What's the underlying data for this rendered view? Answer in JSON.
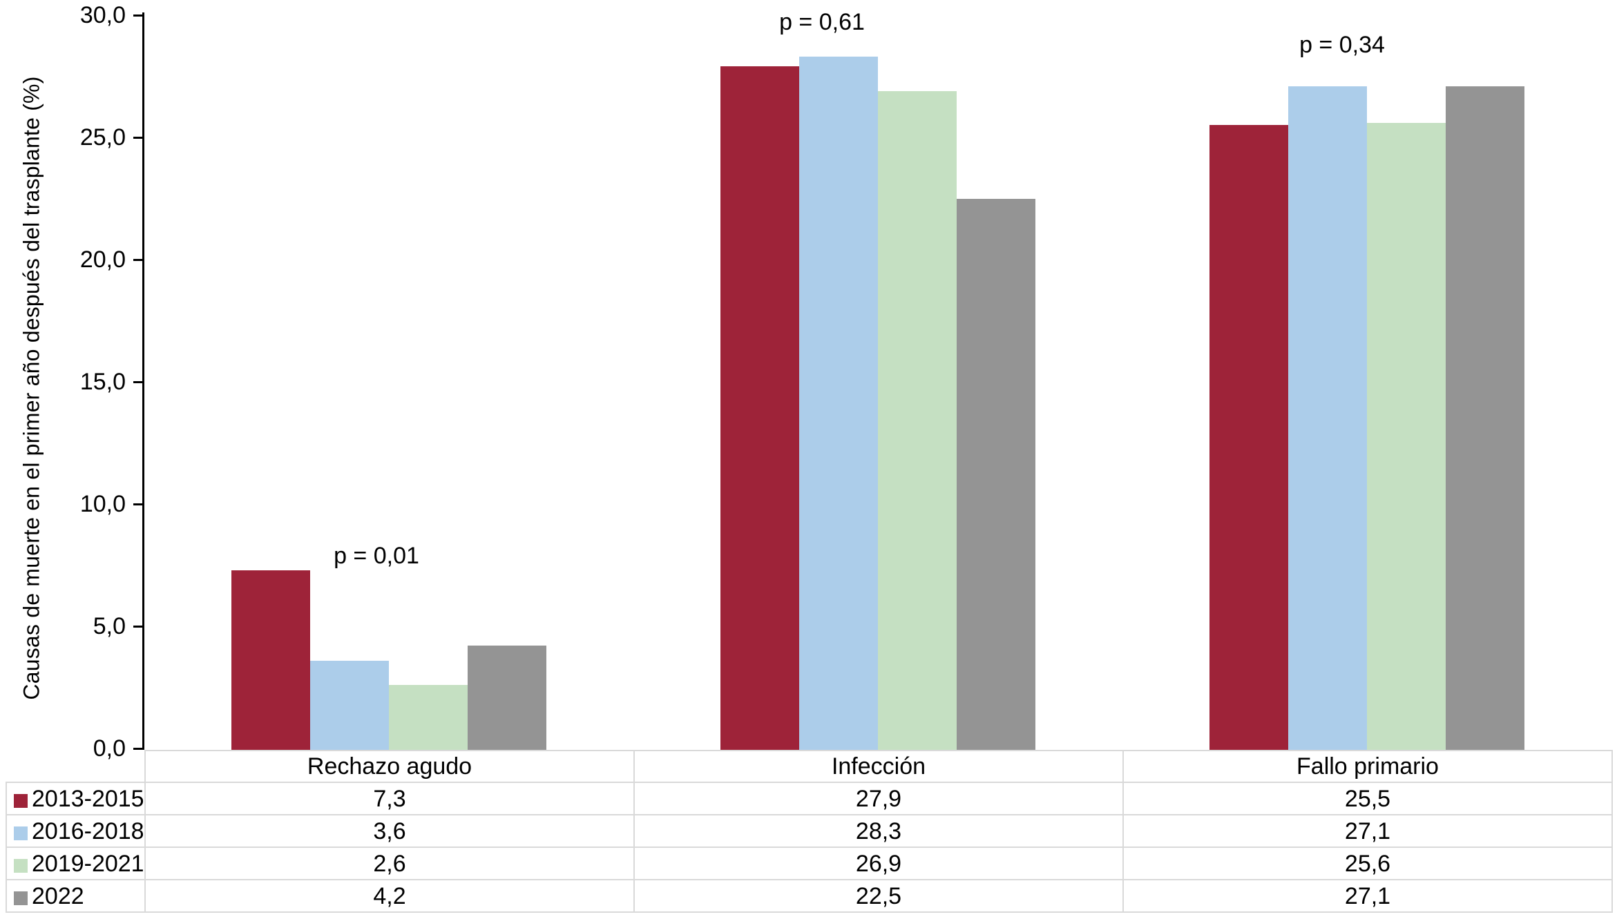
{
  "chart_data": {
    "type": "bar",
    "title": "",
    "xlabel": "",
    "ylabel": "Causas de muerte en el primer año después del trasplante (%)",
    "ylim": [
      0,
      30
    ],
    "grid": false,
    "legend_position": "table-left-column",
    "categories": [
      "Rechazo agudo",
      "Infección",
      "Fallo primario"
    ],
    "series": [
      {
        "name": "2013-2015",
        "color": "#9e2339",
        "values": [
          7.3,
          27.9,
          25.5
        ],
        "labels": [
          "7,3",
          "27,9",
          "25,5"
        ]
      },
      {
        "name": "2016-2018",
        "color": "#accdea",
        "values": [
          3.6,
          28.3,
          27.1
        ],
        "labels": [
          "3,6",
          "28,3",
          "27,1"
        ]
      },
      {
        "name": "2019-2021",
        "color": "#c5e0c2",
        "values": [
          2.6,
          26.9,
          25.6
        ],
        "labels": [
          "2,6",
          "26,9",
          "25,6"
        ]
      },
      {
        "name": "2022",
        "color": "#949494",
        "values": [
          4.2,
          22.5,
          27.1
        ],
        "labels": [
          "4,2",
          "22,5",
          "27,1"
        ]
      }
    ],
    "yticks": [
      {
        "value": 0,
        "label": "0,0"
      },
      {
        "value": 5,
        "label": "5,0"
      },
      {
        "value": 10,
        "label": "10,0"
      },
      {
        "value": 15,
        "label": "15,0"
      },
      {
        "value": 20,
        "label": "20,0"
      },
      {
        "value": 25,
        "label": "25,0"
      },
      {
        "value": 30,
        "label": "30,0"
      }
    ],
    "annotations": [
      {
        "text": "p = 0,01",
        "category_index": 0
      },
      {
        "text": "p = 0,61",
        "category_index": 1
      },
      {
        "text": "p = 0,34",
        "category_index": 2
      }
    ]
  }
}
